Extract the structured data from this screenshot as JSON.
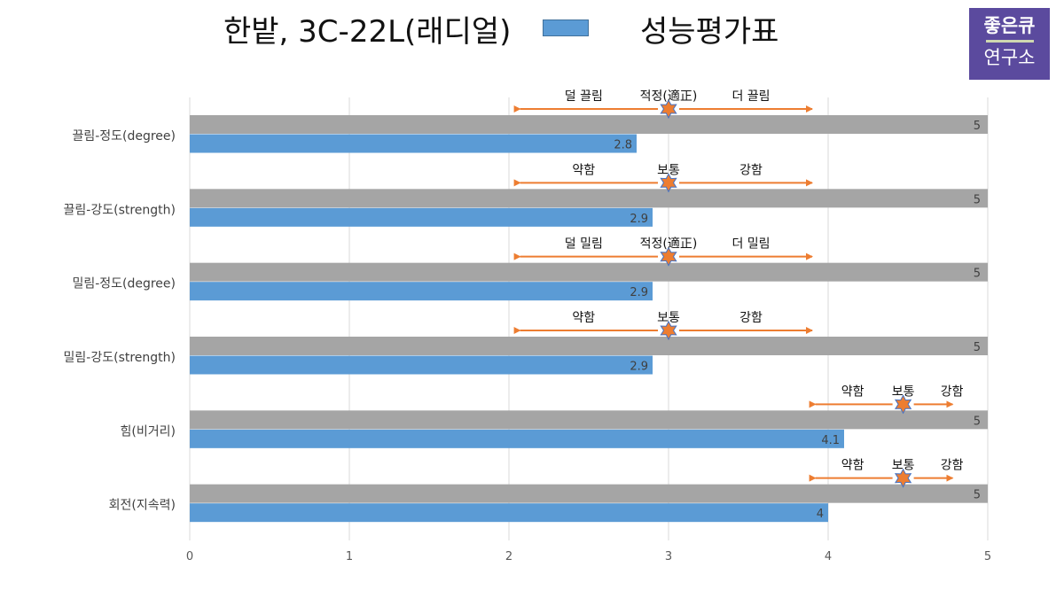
{
  "header": {
    "title": "한밭, 3C-22L(래디얼)",
    "legend_label": "성능평가표"
  },
  "logo": {
    "line1": "좋은큐",
    "line2": "연구소"
  },
  "colors": {
    "max_bar": "#a5a5a5",
    "value_bar": "#5b9bd5",
    "arrow": "#ed7d31",
    "star": "#ed7d31",
    "star_outline": "#4472c4",
    "grid": "#d9d9d9"
  },
  "chart_data": {
    "type": "bar",
    "orientation": "horizontal",
    "categories": [
      "끌림-정도(degree)",
      "끌림-강도(strength)",
      "밀림-정도(degree)",
      "밀림-강도(strength)",
      "힘(비거리)",
      "회전(지속력)"
    ],
    "series": [
      {
        "values": [
          5,
          5,
          5,
          5,
          5,
          5
        ]
      },
      {
        "values": [
          2.8,
          2.9,
          2.9,
          2.9,
          4.1,
          4
        ]
      }
    ],
    "xlim": [
      0,
      5
    ],
    "x_ticks": [
      "0",
      "1",
      "2",
      "3",
      "4",
      "5"
    ],
    "grid": true,
    "annotations": [
      {
        "category": "끌림-정도(degree)",
        "labels": [
          "덜 끌림",
          "적정(適正)",
          "더 끌림"
        ],
        "marker": 3,
        "range": [
          2.07,
          3.9
        ]
      },
      {
        "category": "끌림-강도(strength)",
        "labels": [
          "약함",
          "보통",
          "강함"
        ],
        "marker": 3,
        "range": [
          2.07,
          3.9
        ]
      },
      {
        "category": "밀림-정도(degree)",
        "labels": [
          "덜 밀림",
          "적정(適正)",
          "더 밀림"
        ],
        "marker": 3,
        "range": [
          2.07,
          3.9
        ]
      },
      {
        "category": "밀림-강도(strength)",
        "labels": [
          "약함",
          "보통",
          "강함"
        ],
        "marker": 3,
        "range": [
          2.07,
          3.9
        ]
      },
      {
        "category": "힘(비거리)",
        "labels": [
          "약함",
          "보통",
          "강함"
        ],
        "marker": 4.47,
        "range": [
          3.92,
          4.78
        ]
      },
      {
        "category": "회전(지속력)",
        "labels": [
          "약함",
          "보통",
          "강함"
        ],
        "marker": 4.47,
        "range": [
          3.92,
          4.78
        ]
      }
    ]
  }
}
